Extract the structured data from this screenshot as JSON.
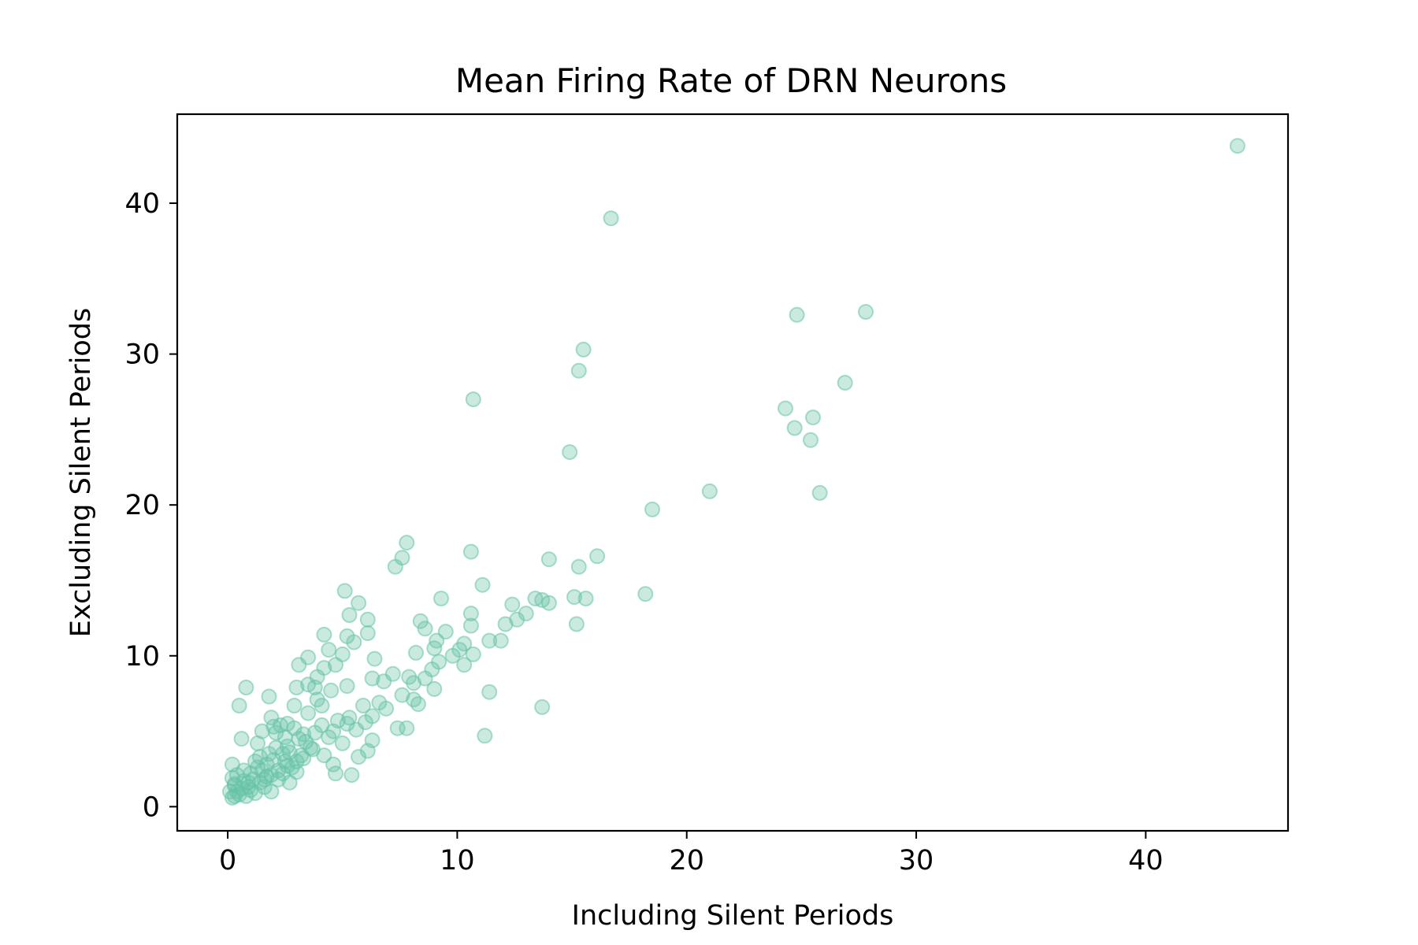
{
  "chart_data": {
    "type": "scatter",
    "title": "Mean Firing Rate of DRN Neurons",
    "xlabel": "Including Silent Periods",
    "ylabel": "Excluding Silent Periods",
    "xlim": [
      -2.2,
      46.2
    ],
    "ylim": [
      -1.6,
      45.9
    ],
    "xticks": [
      0,
      10,
      20,
      30,
      40
    ],
    "yticks": [
      0,
      10,
      20,
      30,
      40
    ],
    "grid": false,
    "legend": "none",
    "marker_color": "#66c2a5",
    "points": [
      [
        44.0,
        43.8
      ],
      [
        16.7,
        39.0
      ],
      [
        24.8,
        32.6
      ],
      [
        27.8,
        32.8
      ],
      [
        15.5,
        30.3
      ],
      [
        15.3,
        28.9
      ],
      [
        26.9,
        28.1
      ],
      [
        10.7,
        27.0
      ],
      [
        24.3,
        26.4
      ],
      [
        25.5,
        25.8
      ],
      [
        24.7,
        25.1
      ],
      [
        25.4,
        24.3
      ],
      [
        14.9,
        23.5
      ],
      [
        21.0,
        20.9
      ],
      [
        25.8,
        20.8
      ],
      [
        18.5,
        19.7
      ],
      [
        7.8,
        17.5
      ],
      [
        10.6,
        16.9
      ],
      [
        16.1,
        16.6
      ],
      [
        14.0,
        16.4
      ],
      [
        7.6,
        16.5
      ],
      [
        7.3,
        15.9
      ],
      [
        15.3,
        15.9
      ],
      [
        11.1,
        14.7
      ],
      [
        5.1,
        14.3
      ],
      [
        18.2,
        14.1
      ],
      [
        9.3,
        13.8
      ],
      [
        15.1,
        13.9
      ],
      [
        15.6,
        13.8
      ],
      [
        13.4,
        13.8
      ],
      [
        13.7,
        13.7
      ],
      [
        14.0,
        13.5
      ],
      [
        5.7,
        13.5
      ],
      [
        12.4,
        13.4
      ],
      [
        10.6,
        12.8
      ],
      [
        13.0,
        12.8
      ],
      [
        5.3,
        12.7
      ],
      [
        12.6,
        12.4
      ],
      [
        6.1,
        12.4
      ],
      [
        8.4,
        12.3
      ],
      [
        12.1,
        12.1
      ],
      [
        15.2,
        12.1
      ],
      [
        10.6,
        12.0
      ],
      [
        8.6,
        11.8
      ],
      [
        9.5,
        11.6
      ],
      [
        6.1,
        11.5
      ],
      [
        4.2,
        11.4
      ],
      [
        5.2,
        11.3
      ],
      [
        9.1,
        11.0
      ],
      [
        11.9,
        11.0
      ],
      [
        11.4,
        11.0
      ],
      [
        5.5,
        10.9
      ],
      [
        10.3,
        10.8
      ],
      [
        9.0,
        10.5
      ],
      [
        4.4,
        10.4
      ],
      [
        10.1,
        10.4
      ],
      [
        5.0,
        10.1
      ],
      [
        10.7,
        10.1
      ],
      [
        9.8,
        10.0
      ],
      [
        8.2,
        10.2
      ],
      [
        3.5,
        9.9
      ],
      [
        6.4,
        9.8
      ],
      [
        9.2,
        9.6
      ],
      [
        10.3,
        9.4
      ],
      [
        3.1,
        9.4
      ],
      [
        4.7,
        9.4
      ],
      [
        4.2,
        9.2
      ],
      [
        8.9,
        9.1
      ],
      [
        7.2,
        8.8
      ],
      [
        7.9,
        8.6
      ],
      [
        3.9,
        8.6
      ],
      [
        6.3,
        8.5
      ],
      [
        8.6,
        8.5
      ],
      [
        8.1,
        8.2
      ],
      [
        3.5,
        8.1
      ],
      [
        6.8,
        8.3
      ],
      [
        5.2,
        8.0
      ],
      [
        0.8,
        7.9
      ],
      [
        3.0,
        7.9
      ],
      [
        3.8,
        7.9
      ],
      [
        9.0,
        7.8
      ],
      [
        4.5,
        7.7
      ],
      [
        11.4,
        7.6
      ],
      [
        7.6,
        7.4
      ],
      [
        1.8,
        7.3
      ],
      [
        3.9,
        7.1
      ],
      [
        8.1,
        7.1
      ],
      [
        6.6,
        6.9
      ],
      [
        0.5,
        6.7
      ],
      [
        4.1,
        6.7
      ],
      [
        8.3,
        6.8
      ],
      [
        13.7,
        6.6
      ],
      [
        2.9,
        6.7
      ],
      [
        5.9,
        6.7
      ],
      [
        6.9,
        6.5
      ],
      [
        3.5,
        6.2
      ],
      [
        6.3,
        6.0
      ],
      [
        1.9,
        5.9
      ],
      [
        5.3,
        5.9
      ],
      [
        2.6,
        5.5
      ],
      [
        6.0,
        5.6
      ],
      [
        7.4,
        5.2
      ],
      [
        7.8,
        5.2
      ],
      [
        2.0,
        5.3
      ],
      [
        1.5,
        5.0
      ],
      [
        4.6,
        5.0
      ],
      [
        5.6,
        5.1
      ],
      [
        2.1,
        4.9
      ],
      [
        3.3,
        4.8
      ],
      [
        11.2,
        4.7
      ],
      [
        0.6,
        4.5
      ],
      [
        6.3,
        4.4
      ],
      [
        5.0,
        4.2
      ],
      [
        2.6,
        4.0
      ],
      [
        1.3,
        4.2
      ],
      [
        3.7,
        3.8
      ],
      [
        4.2,
        3.4
      ],
      [
        6.1,
        3.7
      ],
      [
        5.7,
        3.3
      ],
      [
        2.4,
        3.5
      ],
      [
        4.6,
        2.8
      ],
      [
        0.2,
        2.8
      ],
      [
        3.0,
        3.0
      ],
      [
        1.2,
        3.0
      ],
      [
        1.7,
        2.8
      ],
      [
        2.6,
        2.7
      ],
      [
        4.7,
        2.2
      ],
      [
        5.4,
        2.1
      ],
      [
        0.4,
        2.1
      ],
      [
        1.0,
        2.2
      ],
      [
        1.9,
        2.1
      ],
      [
        3.0,
        2.3
      ],
      [
        2.2,
        1.8
      ],
      [
        0.7,
        1.7
      ],
      [
        1.4,
        1.6
      ],
      [
        2.7,
        1.6
      ],
      [
        0.3,
        1.4
      ],
      [
        0.9,
        1.3
      ],
      [
        1.6,
        1.3
      ],
      [
        0.1,
        1.0
      ],
      [
        1.2,
        0.9
      ],
      [
        0.5,
        0.8
      ],
      [
        1.9,
        1.0
      ],
      [
        0.2,
        0.6
      ],
      [
        0.8,
        0.7
      ],
      [
        0.3,
        0.7
      ],
      [
        2.4,
        2.2
      ],
      [
        2.8,
        2.6
      ],
      [
        3.2,
        3.4
      ],
      [
        2.1,
        3.9
      ],
      [
        1.8,
        3.5
      ],
      [
        2.5,
        4.6
      ],
      [
        2.9,
        5.2
      ],
      [
        2.3,
        5.4
      ],
      [
        3.4,
        4.3
      ],
      [
        3.8,
        4.9
      ],
      [
        4.1,
        5.4
      ],
      [
        4.8,
        5.7
      ],
      [
        5.2,
        5.5
      ],
      [
        1.1,
        1.8
      ],
      [
        1.5,
        2.4
      ],
      [
        1.7,
        2.0
      ],
      [
        0.6,
        1.2
      ],
      [
        0.9,
        1.6
      ],
      [
        1.3,
        2.6
      ],
      [
        2.0,
        3.1
      ],
      [
        2.2,
        2.4
      ],
      [
        3.6,
        3.9
      ],
      [
        4.4,
        4.6
      ],
      [
        1.4,
        3.3
      ],
      [
        0.4,
        1.0
      ],
      [
        0.7,
        2.4
      ],
      [
        0.2,
        1.9
      ],
      [
        2.7,
        3.6
      ],
      [
        3.1,
        4.5
      ],
      [
        1.0,
        1.1
      ],
      [
        1.6,
        1.8
      ],
      [
        2.5,
        3.0
      ],
      [
        3.3,
        3.2
      ],
      [
        0.3,
        1.5
      ]
    ]
  }
}
